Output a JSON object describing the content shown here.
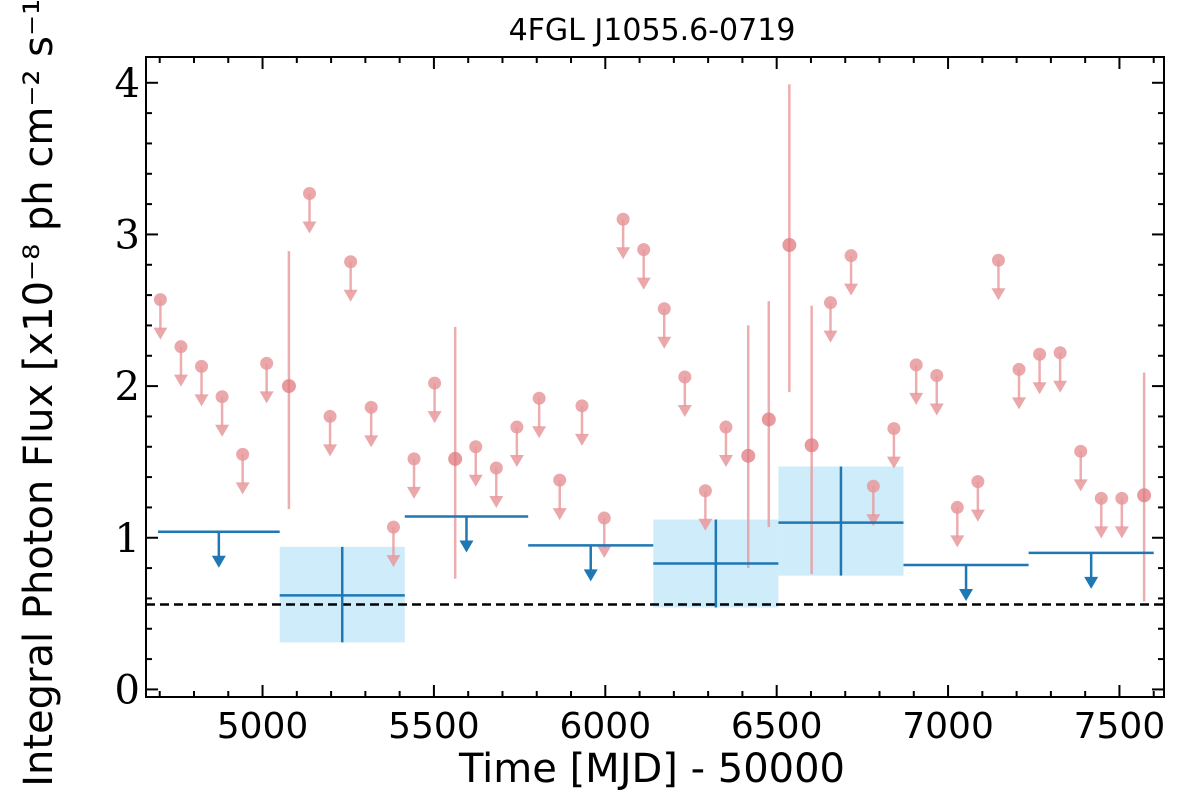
{
  "chart_data": {
    "type": "scatter",
    "title": "4FGL J1055.6-0719",
    "xlabel": "Time [MJD] - 50000",
    "ylabel": "Integral Photon Flux [x10⁻⁸ ph cm⁻² s⁻¹]",
    "xlim": [
      4660,
      7630
    ],
    "ylim": [
      -0.05,
      4.17
    ],
    "xticks": [
      5000,
      5500,
      6000,
      6500,
      7000,
      7500
    ],
    "xtick_labels": [
      "5000",
      "5500",
      "6000",
      "6500",
      "7000",
      "7500"
    ],
    "yticks": [
      0,
      1,
      2,
      3,
      4
    ],
    "ytick_labels": [
      "0",
      "1",
      "2",
      "3",
      "4"
    ],
    "grid": false,
    "colors": {
      "short_bins": "#e8999c",
      "long_bins": "#1f77b4",
      "long_bins_band": "#cfecfb",
      "reference_line": "#000000"
    },
    "series": [
      {
        "points": [
          {
            "x": 4702,
            "y": 2.57,
            "upper_limit": true
          },
          {
            "x": 4762,
            "y": 2.26,
            "upper_limit": true
          },
          {
            "x": 4822,
            "y": 2.13,
            "upper_limit": true
          },
          {
            "x": 4882,
            "y": 1.93,
            "upper_limit": true
          },
          {
            "x": 4942,
            "y": 1.55,
            "upper_limit": true
          },
          {
            "x": 5012,
            "y": 2.15,
            "upper_limit": true
          },
          {
            "x": 5077,
            "y": 2.0,
            "ylow": 1.19,
            "yhigh": 2.89
          },
          {
            "x": 5137,
            "y": 3.27,
            "upper_limit": true
          },
          {
            "x": 5197,
            "y": 1.8,
            "upper_limit": true
          },
          {
            "x": 5257,
            "y": 2.82,
            "upper_limit": true
          },
          {
            "x": 5317,
            "y": 1.86,
            "upper_limit": true
          },
          {
            "x": 5382,
            "y": 1.07,
            "upper_limit": true
          },
          {
            "x": 5442,
            "y": 1.52,
            "upper_limit": true
          },
          {
            "x": 5502,
            "y": 2.02,
            "upper_limit": true
          },
          {
            "x": 5562,
            "y": 1.52,
            "ylow": 0.73,
            "yhigh": 2.39
          },
          {
            "x": 5622,
            "y": 1.6,
            "upper_limit": true
          },
          {
            "x": 5682,
            "y": 1.46,
            "upper_limit": true
          },
          {
            "x": 5742,
            "y": 1.73,
            "upper_limit": true
          },
          {
            "x": 5807,
            "y": 1.92,
            "upper_limit": true
          },
          {
            "x": 5867,
            "y": 1.38,
            "upper_limit": true
          },
          {
            "x": 5932,
            "y": 1.87,
            "upper_limit": true
          },
          {
            "x": 5997,
            "y": 1.13,
            "upper_limit": true
          },
          {
            "x": 6052,
            "y": 3.1,
            "upper_limit": true
          },
          {
            "x": 6112,
            "y": 2.9,
            "upper_limit": true
          },
          {
            "x": 6172,
            "y": 2.51,
            "upper_limit": true
          },
          {
            "x": 6232,
            "y": 2.06,
            "upper_limit": true
          },
          {
            "x": 6292,
            "y": 1.31,
            "upper_limit": true
          },
          {
            "x": 6352,
            "y": 1.73,
            "upper_limit": true
          },
          {
            "x": 6417,
            "y": 1.54,
            "ylow": 0.8,
            "yhigh": 2.4
          },
          {
            "x": 6477,
            "y": 1.78,
            "ylow": 1.07,
            "yhigh": 2.56
          },
          {
            "x": 6537,
            "y": 2.93,
            "ylow": 1.96,
            "yhigh": 3.99
          },
          {
            "x": 6602,
            "y": 1.61,
            "ylow": 0.76,
            "yhigh": 2.53
          },
          {
            "x": 6657,
            "y": 2.55,
            "upper_limit": true
          },
          {
            "x": 6717,
            "y": 2.86,
            "upper_limit": true
          },
          {
            "x": 6782,
            "y": 1.34,
            "upper_limit": true
          },
          {
            "x": 6842,
            "y": 1.72,
            "upper_limit": true
          },
          {
            "x": 6907,
            "y": 2.14,
            "upper_limit": true
          },
          {
            "x": 6967,
            "y": 2.07,
            "upper_limit": true
          },
          {
            "x": 7027,
            "y": 1.2,
            "upper_limit": true
          },
          {
            "x": 7087,
            "y": 1.37,
            "upper_limit": true
          },
          {
            "x": 7147,
            "y": 2.83,
            "upper_limit": true
          },
          {
            "x": 7207,
            "y": 2.11,
            "upper_limit": true
          },
          {
            "x": 7267,
            "y": 2.21,
            "upper_limit": true
          },
          {
            "x": 7327,
            "y": 2.22,
            "upper_limit": true
          },
          {
            "x": 7387,
            "y": 1.57,
            "upper_limit": true
          },
          {
            "x": 7447,
            "y": 1.26,
            "upper_limit": true
          },
          {
            "x": 7507,
            "y": 1.26,
            "upper_limit": true
          },
          {
            "x": 7572,
            "y": 1.28,
            "ylow": 0.58,
            "yhigh": 2.09
          }
        ]
      },
      {
        "bins": [
          {
            "x0": 4695,
            "x1": 5050,
            "y": 1.04,
            "upper_limit": true
          },
          {
            "x0": 5050,
            "x1": 5415,
            "y": 0.62,
            "ylow": 0.31,
            "yhigh": 0.94
          },
          {
            "x0": 5415,
            "x1": 5775,
            "y": 1.14,
            "upper_limit": true
          },
          {
            "x0": 5775,
            "x1": 6140,
            "y": 0.95,
            "upper_limit": true
          },
          {
            "x0": 6140,
            "x1": 6505,
            "y": 0.83,
            "ylow": 0.54,
            "yhigh": 1.12
          },
          {
            "x0": 6505,
            "x1": 6870,
            "y": 1.1,
            "ylow": 0.75,
            "yhigh": 1.47
          },
          {
            "x0": 6870,
            "x1": 7235,
            "y": 0.82,
            "upper_limit": true
          },
          {
            "x0": 7235,
            "x1": 7600,
            "y": 0.9,
            "upper_limit": true
          }
        ]
      }
    ],
    "reference_line": {
      "y": 0.56,
      "style": "dashed"
    }
  }
}
